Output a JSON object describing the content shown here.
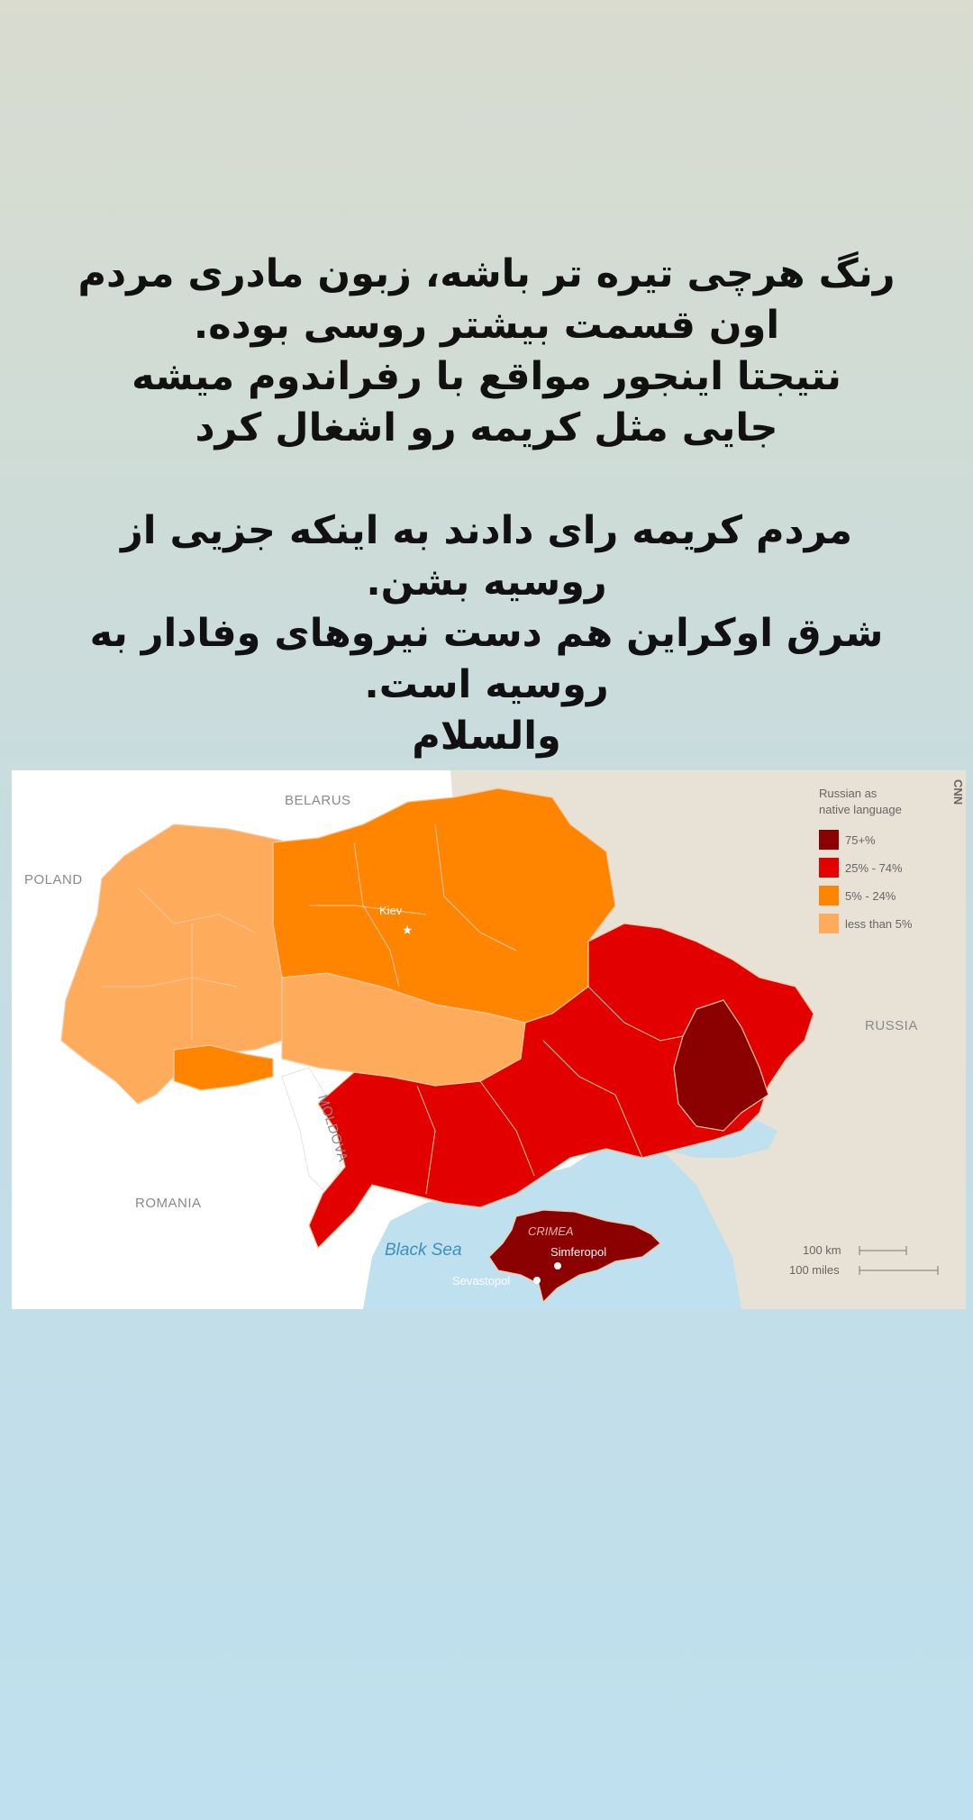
{
  "caption": {
    "lines": [
      "رنگ هرچی تیره تر باشه، زبون مادری مردم",
      "اون قسمت بیشتر روسی بوده.",
      "نتیجتا اینجور مواقع با رفراندوم میشه",
      "جایی مثل کریمه رو اشغال کرد",
      "مردم کریمه رای دادند به اینکه جزیی از",
      "روسیه بشن.",
      "شرق اوکراین هم دست نیروهای وفادار به",
      "روسیه است.",
      "والسلام"
    ]
  },
  "map": {
    "source_mark": "CNN",
    "countries": {
      "belarus": "BELARUS",
      "poland": "POLAND",
      "russia": "RUSSIA",
      "romania": "ROMANIA",
      "moldova": "MOLDOVA"
    },
    "places": {
      "kiev": "Kiev",
      "black_sea": "Black Sea",
      "crimea": "CRIMEA",
      "simferopol": "Simferopol",
      "sevastopol": "Sevastopol"
    },
    "legend": {
      "title_line1": "Russian as",
      "title_line2": "native language",
      "items": [
        {
          "label": "75+%",
          "color": "#8b0000"
        },
        {
          "label": "25% - 74%",
          "color": "#e30000"
        },
        {
          "label": "5% - 24%",
          "color": "#ff8400"
        },
        {
          "label": "less than 5%",
          "color": "#ffab5c"
        }
      ]
    },
    "scale": {
      "km": "100 km",
      "miles": "100 miles"
    },
    "colors": {
      "land_outside": "#ffffff",
      "russia": "#e8e1d6",
      "sea": "#bfe0ef",
      "border": "#f5c9a0"
    }
  }
}
